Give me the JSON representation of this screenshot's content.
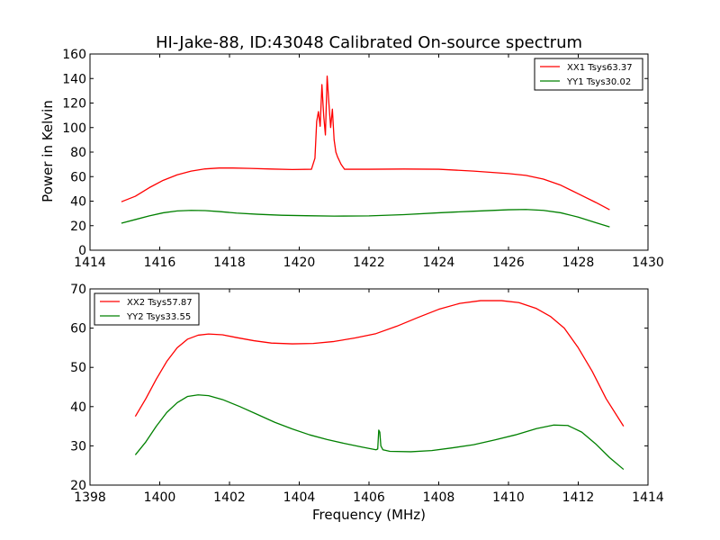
{
  "chart_data": [
    {
      "type": "line",
      "title": "HI-Jake-88, ID:43048 Calibrated On-source spectrum",
      "xlabel": "",
      "ylabel": "Power in Kelvin",
      "xlim": [
        1414,
        1430
      ],
      "ylim": [
        0,
        160
      ],
      "xticks": [
        "1414",
        "1416",
        "1418",
        "1420",
        "1422",
        "1424",
        "1426",
        "1428",
        "1430"
      ],
      "yticks": [
        "0",
        "20",
        "40",
        "60",
        "80",
        "100",
        "120",
        "140",
        "160"
      ],
      "grid": false,
      "legend_position": "top-right",
      "series": [
        {
          "name": "XX1 Tsys63.37",
          "color": "#ff0000",
          "points": [
            [
              1414.9,
              39.5
            ],
            [
              1415.3,
              44
            ],
            [
              1415.7,
              51
            ],
            [
              1416.1,
              57
            ],
            [
              1416.5,
              61.5
            ],
            [
              1416.9,
              64.5
            ],
            [
              1417.3,
              66.3
            ],
            [
              1417.7,
              67
            ],
            [
              1418.1,
              67
            ],
            [
              1418.6,
              66.7
            ],
            [
              1419.2,
              66.2
            ],
            [
              1419.8,
              65.8
            ],
            [
              1420.35,
              66
            ],
            [
              1420.45,
              75
            ],
            [
              1420.5,
              105
            ],
            [
              1420.55,
              113
            ],
            [
              1420.6,
              101
            ],
            [
              1420.65,
              135
            ],
            [
              1420.7,
              110
            ],
            [
              1420.75,
              94
            ],
            [
              1420.8,
              142
            ],
            [
              1420.85,
              120
            ],
            [
              1420.9,
              100
            ],
            [
              1420.95,
              115
            ],
            [
              1421.0,
              90
            ],
            [
              1421.05,
              80
            ],
            [
              1421.1,
              76
            ],
            [
              1421.2,
              70
            ],
            [
              1421.3,
              66
            ],
            [
              1422,
              66
            ],
            [
              1423,
              66.2
            ],
            [
              1424,
              66
            ],
            [
              1425,
              64.5
            ],
            [
              1426,
              62.5
            ],
            [
              1426.5,
              61
            ],
            [
              1427,
              58
            ],
            [
              1427.5,
              53
            ],
            [
              1428,
              46
            ],
            [
              1428.5,
              39
            ],
            [
              1428.9,
              33
            ]
          ]
        },
        {
          "name": "YY1 Tsys30.02",
          "color": "#008000",
          "points": [
            [
              1414.9,
              22
            ],
            [
              1415.3,
              25
            ],
            [
              1415.7,
              28
            ],
            [
              1416.1,
              30.5
            ],
            [
              1416.5,
              32
            ],
            [
              1416.9,
              32.5
            ],
            [
              1417.3,
              32.3
            ],
            [
              1417.7,
              31.5
            ],
            [
              1418.2,
              30.3
            ],
            [
              1418.8,
              29.3
            ],
            [
              1419.5,
              28.5
            ],
            [
              1420.2,
              28.1
            ],
            [
              1421,
              27.8
            ],
            [
              1422,
              28
            ],
            [
              1423,
              29
            ],
            [
              1424,
              30.5
            ],
            [
              1425,
              31.8
            ],
            [
              1426,
              33
            ],
            [
              1426.5,
              33.2
            ],
            [
              1427,
              32.5
            ],
            [
              1427.5,
              30.5
            ],
            [
              1428,
              27
            ],
            [
              1428.5,
              22.5
            ],
            [
              1428.9,
              19
            ]
          ]
        }
      ]
    },
    {
      "type": "line",
      "title": "",
      "xlabel": "Frequency (MHz)",
      "ylabel": "",
      "xlim": [
        1398,
        1414
      ],
      "ylim": [
        20,
        70
      ],
      "xticks": [
        "1398",
        "1400",
        "1402",
        "1404",
        "1406",
        "1408",
        "1410",
        "1412",
        "1414"
      ],
      "yticks": [
        "20",
        "30",
        "40",
        "50",
        "60",
        "70"
      ],
      "grid": false,
      "legend_position": "top-left",
      "series": [
        {
          "name": "XX2 Tsys57.87",
          "color": "#ff0000",
          "points": [
            [
              1399.3,
              37.5
            ],
            [
              1399.6,
              42
            ],
            [
              1399.9,
              47
            ],
            [
              1400.2,
              51.5
            ],
            [
              1400.5,
              55
            ],
            [
              1400.8,
              57.2
            ],
            [
              1401.1,
              58.2
            ],
            [
              1401.4,
              58.5
            ],
            [
              1401.8,
              58.3
            ],
            [
              1402.2,
              57.6
            ],
            [
              1402.7,
              56.8
            ],
            [
              1403.2,
              56.2
            ],
            [
              1403.8,
              56
            ],
            [
              1404.4,
              56.1
            ],
            [
              1405,
              56.6
            ],
            [
              1405.6,
              57.5
            ],
            [
              1406.2,
              58.6
            ],
            [
              1406.8,
              60.5
            ],
            [
              1407.4,
              62.7
            ],
            [
              1408,
              64.8
            ],
            [
              1408.6,
              66.3
            ],
            [
              1409.2,
              67
            ],
            [
              1409.8,
              67
            ],
            [
              1410.3,
              66.5
            ],
            [
              1410.8,
              65
            ],
            [
              1411.2,
              63
            ],
            [
              1411.6,
              60
            ],
            [
              1412,
              55
            ],
            [
              1412.4,
              49
            ],
            [
              1412.8,
              42
            ],
            [
              1413.3,
              35
            ]
          ]
        },
        {
          "name": "YY2 Tsys33.55",
          "color": "#008000",
          "points": [
            [
              1399.3,
              27.7
            ],
            [
              1399.6,
              31
            ],
            [
              1399.9,
              35
            ],
            [
              1400.2,
              38.5
            ],
            [
              1400.5,
              41
            ],
            [
              1400.8,
              42.6
            ],
            [
              1401.1,
              43
            ],
            [
              1401.4,
              42.8
            ],
            [
              1401.8,
              41.8
            ],
            [
              1402.3,
              40
            ],
            [
              1402.8,
              38
            ],
            [
              1403.3,
              36
            ],
            [
              1403.8,
              34.3
            ],
            [
              1404.3,
              32.8
            ],
            [
              1404.8,
              31.6
            ],
            [
              1405.3,
              30.6
            ],
            [
              1405.8,
              29.7
            ],
            [
              1406.2,
              29
            ],
            [
              1406.25,
              29.2
            ],
            [
              1406.28,
              34
            ],
            [
              1406.31,
              33.5
            ],
            [
              1406.34,
              30
            ],
            [
              1406.4,
              29
            ],
            [
              1406.6,
              28.6
            ],
            [
              1407.2,
              28.5
            ],
            [
              1407.8,
              28.8
            ],
            [
              1408.4,
              29.5
            ],
            [
              1409,
              30.3
            ],
            [
              1409.6,
              31.5
            ],
            [
              1410.2,
              32.8
            ],
            [
              1410.8,
              34.4
            ],
            [
              1411.3,
              35.3
            ],
            [
              1411.7,
              35.2
            ],
            [
              1412.1,
              33.5
            ],
            [
              1412.5,
              30.5
            ],
            [
              1412.9,
              27
            ],
            [
              1413.3,
              24
            ]
          ]
        }
      ]
    }
  ]
}
